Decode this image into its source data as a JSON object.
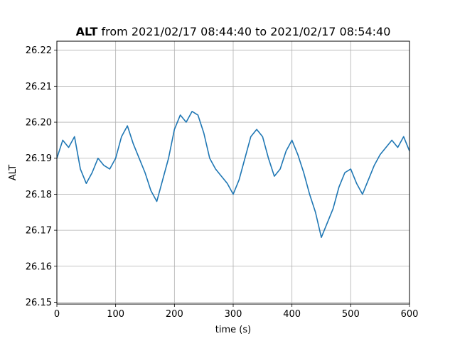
{
  "chart_data": {
    "type": "line",
    "title_bold": "ALT",
    "title_rest": " from 2021/02/17 08:44:40 to 2021/02/17 08:54:40",
    "xlabel": "time (s)",
    "ylabel": "ALT",
    "xlim": [
      0,
      600
    ],
    "ylim": [
      26.1495,
      26.2225
    ],
    "xticks": [
      0,
      100,
      200,
      300,
      400,
      500,
      600
    ],
    "xtick_labels": [
      "0",
      "100",
      "200",
      "300",
      "400",
      "500",
      "600"
    ],
    "yticks": [
      26.15,
      26.16,
      26.17,
      26.18,
      26.19,
      26.2,
      26.21,
      26.22
    ],
    "ytick_labels": [
      "26.15",
      "26.16",
      "26.17",
      "26.18",
      "26.19",
      "26.20",
      "26.21",
      "26.22"
    ],
    "grid": true,
    "color": "#1f77b4",
    "series": [
      {
        "x": [
          0,
          10,
          20,
          30,
          40,
          50,
          60,
          70,
          80,
          90,
          100,
          110,
          120,
          130,
          140,
          150,
          160,
          170,
          180,
          190,
          200,
          210,
          220,
          230,
          240,
          250,
          260,
          270,
          280,
          290,
          300,
          310,
          320,
          330,
          340,
          350,
          360,
          370,
          380,
          390,
          400,
          410,
          420,
          430,
          440,
          450,
          460,
          470,
          480,
          490,
          500,
          510,
          520,
          530,
          540,
          550,
          560,
          570,
          580,
          590,
          600
        ],
        "y": [
          26.19,
          26.195,
          26.193,
          26.196,
          26.187,
          26.183,
          26.186,
          26.19,
          26.188,
          26.187,
          26.19,
          26.196,
          26.199,
          26.194,
          26.19,
          26.186,
          26.181,
          26.178,
          26.184,
          26.19,
          26.198,
          26.202,
          26.2,
          26.203,
          26.202,
          26.197,
          26.19,
          26.187,
          26.185,
          26.183,
          26.18,
          26.184,
          26.19,
          26.196,
          26.198,
          26.196,
          26.19,
          26.185,
          26.187,
          26.192,
          26.195,
          26.191,
          26.186,
          26.18,
          26.175,
          26.168,
          26.172,
          26.176,
          26.182,
          26.186,
          26.187,
          26.183,
          26.18,
          26.184,
          26.188,
          26.191,
          26.193,
          26.195,
          26.193,
          26.196,
          26.192
        ]
      }
    ]
  }
}
